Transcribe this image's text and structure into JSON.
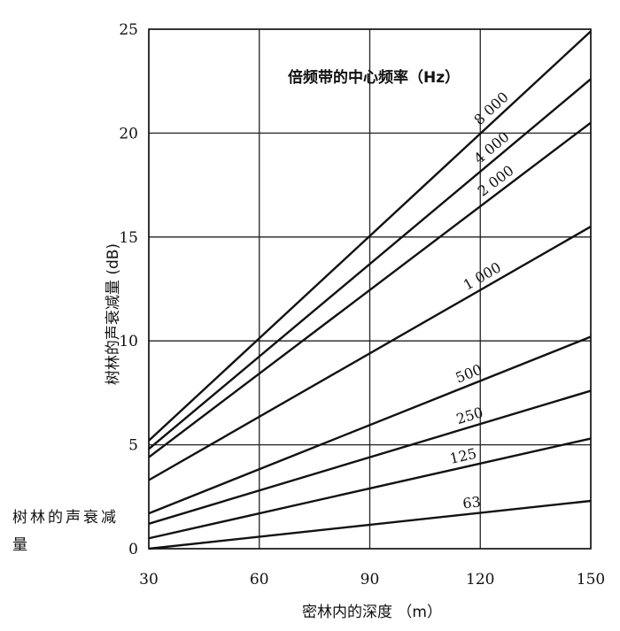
{
  "chart_data": {
    "type": "line",
    "title": "",
    "legend_title": "倍频带的中心频率（Hz）",
    "xlabel": "密林内的深度 （m）",
    "ylabel": "树林的声衰减量 (dB)",
    "xlim": [
      30,
      150
    ],
    "ylim": [
      0,
      25
    ],
    "x_ticks": [
      30,
      60,
      90,
      120,
      150
    ],
    "y_ticks": [
      0,
      5,
      10,
      15,
      20,
      25
    ],
    "grid": true,
    "series": [
      {
        "name": "8 000",
        "x": [
          30,
          150
        ],
        "y": [
          5.2,
          24.9
        ]
      },
      {
        "name": "4 000",
        "x": [
          30,
          150
        ],
        "y": [
          4.8,
          22.6
        ]
      },
      {
        "name": "2 000",
        "x": [
          30,
          150
        ],
        "y": [
          4.4,
          20.5
        ]
      },
      {
        "name": "1 000",
        "x": [
          30,
          150
        ],
        "y": [
          3.3,
          15.5
        ]
      },
      {
        "name": "500",
        "x": [
          30,
          150
        ],
        "y": [
          1.7,
          10.2
        ]
      },
      {
        "name": "250",
        "x": [
          30,
          150
        ],
        "y": [
          1.2,
          7.6
        ]
      },
      {
        "name": "125",
        "x": [
          30,
          150
        ],
        "y": [
          0.5,
          5.3
        ]
      },
      {
        "name": "63",
        "x": [
          30,
          150
        ],
        "y": [
          0.0,
          2.3
        ]
      }
    ]
  },
  "side_note": "树林的声衰减量"
}
